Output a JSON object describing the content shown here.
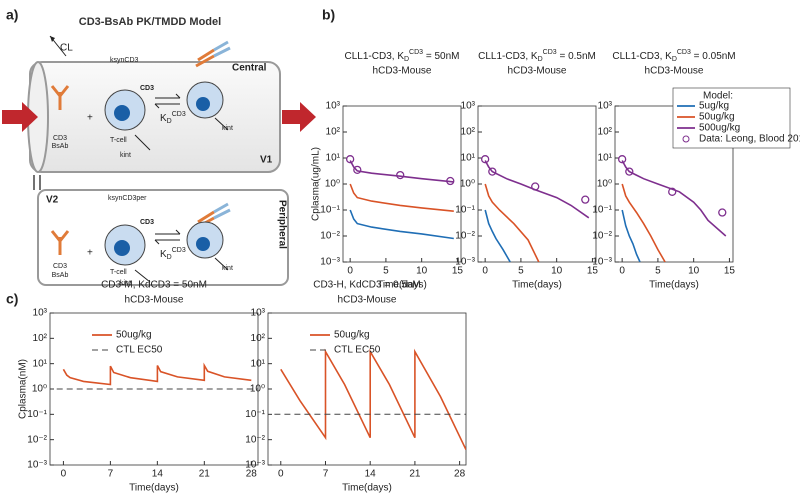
{
  "panel_a": {
    "tag": "a)",
    "title": "CD3-BsAb PK/TMDD Model",
    "labels": [
      "CL",
      "ksynCD3",
      "Central",
      "CD3",
      "CD3",
      "BsAb",
      "T-cell",
      "kint",
      "K",
      "D",
      "CD3",
      "kint",
      "V1",
      "V2",
      "ksynCD3per",
      "CD3",
      "CD3",
      "BsAb",
      "T-cell",
      "kint",
      "K",
      "D",
      "CD3",
      "kint",
      "Peripheral"
    ]
  },
  "panel_b_tag": "b)",
  "panel_c_tag": "c)",
  "chart_data": [
    {
      "type": "line",
      "title_parts": [
        "CLL1-CD3, K",
        "D",
        "CD3",
        " = 50nM"
      ],
      "subtitle": "hCD3-Mouse",
      "xlabel": "Time(days)",
      "ylabel": "Cplasma(ug/mL)",
      "xlim": [
        -1,
        15.5
      ],
      "xticks": [
        0,
        5,
        10,
        15
      ],
      "ylim": [
        0.001,
        1000
      ],
      "ylog": true,
      "yticks": [
        {
          "value": 0.001,
          "label": "10⁻³"
        },
        {
          "value": 0.01,
          "label": "10⁻²"
        },
        {
          "value": 0.1,
          "label": "10⁻¹"
        },
        {
          "value": 1,
          "label": "10⁰"
        },
        {
          "value": 10,
          "label": "10¹"
        },
        {
          "value": 100,
          "label": "10²"
        },
        {
          "value": 1000,
          "label": "10³"
        }
      ],
      "series": [
        {
          "kind": "line",
          "color": "#1f6eb5",
          "x": [
            0,
            0.5,
            1,
            3,
            7,
            10,
            14.5
          ],
          "values": [
            0.1,
            0.045,
            0.03,
            0.022,
            0.015,
            0.012,
            0.008
          ]
        },
        {
          "kind": "line",
          "color": "#d95327",
          "x": [
            0,
            0.5,
            1,
            3,
            7,
            10,
            14.5
          ],
          "values": [
            1,
            0.45,
            0.3,
            0.22,
            0.15,
            0.12,
            0.09
          ]
        },
        {
          "kind": "line",
          "color": "#7e2f8e",
          "x": [
            0,
            0.5,
            1,
            3,
            7,
            10,
            14.5
          ],
          "values": [
            8,
            4.5,
            3.2,
            2.6,
            2,
            1.6,
            1.2
          ]
        },
        {
          "kind": "scatter",
          "color": "#7e2f8e",
          "x": [
            0,
            1,
            7,
            14
          ],
          "values": [
            9,
            3.5,
            2.2,
            1.3
          ]
        }
      ]
    },
    {
      "type": "line",
      "title_parts": [
        "CLL1-CD3, K",
        "D",
        "CD3",
        " = 0.5nM"
      ],
      "subtitle": "hCD3-Mouse",
      "xlabel": "Time(days)",
      "xlim": [
        -1,
        15.5
      ],
      "xticks": [
        0,
        5,
        10,
        15
      ],
      "ylim": [
        0.001,
        1000
      ],
      "ylog": true,
      "yticks": [
        {
          "value": 0.001,
          "label": "10⁻³"
        },
        {
          "value": 0.01,
          "label": "10⁻²"
        },
        {
          "value": 0.1,
          "label": "10⁻¹"
        },
        {
          "value": 1,
          "label": "10⁰"
        },
        {
          "value": 10,
          "label": "10¹"
        },
        {
          "value": 100,
          "label": "10²"
        },
        {
          "value": 1000,
          "label": "10³"
        }
      ],
      "series": [
        {
          "kind": "line",
          "color": "#1f6eb5",
          "x": [
            0,
            0.5,
            1,
            1.5,
            2.5,
            3.5
          ],
          "values": [
            0.1,
            0.03,
            0.015,
            0.008,
            0.003,
            0.001
          ]
        },
        {
          "kind": "line",
          "color": "#d95327",
          "x": [
            0,
            0.5,
            1,
            2,
            4,
            6,
            7.5
          ],
          "values": [
            1,
            0.35,
            0.2,
            0.1,
            0.03,
            0.007,
            0.001
          ]
        },
        {
          "kind": "line",
          "color": "#7e2f8e",
          "x": [
            0,
            0.5,
            1,
            3,
            5,
            7,
            10,
            12,
            14.5
          ],
          "values": [
            8,
            4.5,
            3,
            1.6,
            1,
            0.6,
            0.3,
            0.15,
            0.05
          ]
        },
        {
          "kind": "scatter",
          "color": "#7e2f8e",
          "x": [
            0,
            1,
            7,
            14
          ],
          "values": [
            9,
            3,
            0.8,
            0.25
          ]
        }
      ]
    },
    {
      "type": "line",
      "title_parts": [
        "CLL1-CD3, K",
        "D",
        "CD3",
        " = 0.05nM"
      ],
      "subtitle": "hCD3-Mouse",
      "xlabel": "Time(days)",
      "xlim": [
        -1,
        15.5
      ],
      "xticks": [
        0,
        5,
        10,
        15
      ],
      "ylim": [
        0.001,
        1000
      ],
      "ylog": true,
      "yticks": [
        {
          "value": 0.001,
          "label": "10⁻³"
        },
        {
          "value": 0.01,
          "label": "10⁻²"
        },
        {
          "value": 0.1,
          "label": "10⁻¹"
        },
        {
          "value": 1,
          "label": "10⁰"
        },
        {
          "value": 10,
          "label": "10¹"
        },
        {
          "value": 100,
          "label": "10²"
        },
        {
          "value": 1000,
          "label": "10³"
        }
      ],
      "legend": "upper right",
      "legend_title": "Model:",
      "series": [
        {
          "name": "5ug/kg",
          "kind": "line",
          "color": "#1f6eb5",
          "x": [
            0,
            0.5,
            1,
            1.5,
            2,
            2.5
          ],
          "values": [
            0.1,
            0.025,
            0.01,
            0.005,
            0.002,
            0.001
          ]
        },
        {
          "name": "50ug/kg",
          "kind": "line",
          "color": "#d95327",
          "x": [
            0,
            0.5,
            1,
            2,
            3,
            4,
            5,
            6
          ],
          "values": [
            1,
            0.35,
            0.2,
            0.08,
            0.03,
            0.01,
            0.003,
            0.001
          ]
        },
        {
          "name": "500ug/kg",
          "kind": "line",
          "color": "#7e2f8e",
          "x": [
            0,
            0.5,
            1,
            3,
            5,
            8,
            10,
            11,
            12,
            14.5
          ],
          "values": [
            8,
            4.5,
            3,
            1.6,
            1,
            0.5,
            0.2,
            0.1,
            0.04,
            0.01
          ]
        },
        {
          "name": "Data: Leong, Blood 2017",
          "kind": "scatter",
          "color": "#7e2f8e",
          "x": [
            0,
            1,
            7,
            14
          ],
          "values": [
            9,
            3,
            0.5,
            0.08
          ]
        }
      ]
    },
    {
      "type": "line",
      "title": "CD3-M, KdCD3 = 50nM",
      "subtitle": "hCD3-Mouse",
      "xlabel": "Time(days)",
      "ylabel": "Cplasma(nM)",
      "xlim": [
        -2,
        29
      ],
      "xticks": [
        0,
        7,
        14,
        21,
        28
      ],
      "ylim": [
        0.001,
        1000
      ],
      "ylog": true,
      "yticks": [
        {
          "value": 0.001,
          "label": "10⁻³"
        },
        {
          "value": 0.01,
          "label": "10⁻²"
        },
        {
          "value": 0.1,
          "label": "10⁻¹"
        },
        {
          "value": 1,
          "label": "10⁰"
        },
        {
          "value": 10,
          "label": "10¹"
        },
        {
          "value": 100,
          "label": "10²"
        },
        {
          "value": 1000,
          "label": "10³"
        }
      ],
      "legend": "upper right",
      "series": [
        {
          "name": "50ug/kg",
          "kind": "line",
          "color": "#d95327",
          "x": [
            0,
            0.5,
            1,
            3,
            7,
            7,
            7.5,
            10,
            14,
            14,
            14.5,
            17,
            21,
            21,
            21.5,
            24,
            28
          ],
          "values": [
            6,
            3.5,
            2.8,
            2,
            1.5,
            8,
            4.5,
            2.8,
            2,
            8.5,
            4.8,
            3,
            2.2,
            8.5,
            5,
            3,
            2.2
          ]
        },
        {
          "name": "CTL EC50",
          "kind": "line",
          "dashed": true,
          "color": "#444444",
          "x": [
            -1,
            29
          ],
          "values": [
            1,
            1
          ]
        }
      ]
    },
    {
      "type": "line",
      "title": "CD3-H, KdCD3 = 0.5nM",
      "subtitle": "hCD3-Mouse",
      "xlabel": "Time(days)",
      "xlim": [
        -2,
        29
      ],
      "xticks": [
        0,
        7,
        14,
        21,
        28
      ],
      "ylim": [
        0.001,
        1000
      ],
      "ylog": true,
      "yticks": [
        {
          "value": 0.001,
          "label": "10⁻³"
        },
        {
          "value": 0.01,
          "label": "10⁻²"
        },
        {
          "value": 0.1,
          "label": "10⁻¹"
        },
        {
          "value": 1,
          "label": "10⁰"
        },
        {
          "value": 10,
          "label": "10¹"
        },
        {
          "value": 100,
          "label": "10²"
        },
        {
          "value": 1000,
          "label": "10³"
        }
      ],
      "legend": "upper right",
      "series": [
        {
          "name": "50ug/kg",
          "kind": "line",
          "color": "#d95327",
          "x": [
            0,
            3,
            7,
            7,
            10,
            14,
            14,
            17,
            21,
            21,
            25,
            29
          ],
          "values": [
            6,
            0.35,
            0.012,
            30,
            1.5,
            0.012,
            30,
            1.5,
            0.012,
            30,
            0.5,
            0.004
          ]
        },
        {
          "name": "CTL EC50",
          "kind": "line",
          "dashed": true,
          "color": "#444444",
          "x": [
            -1,
            29
          ],
          "values": [
            0.1,
            0.1
          ]
        }
      ]
    }
  ]
}
